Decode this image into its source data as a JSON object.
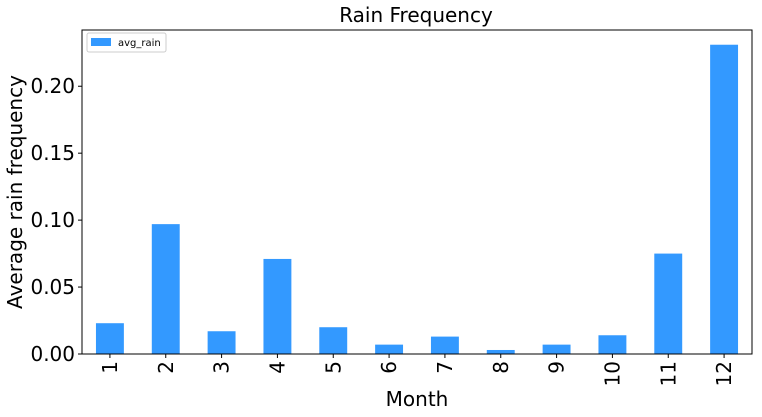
{
  "chart_data": {
    "type": "bar",
    "title": "Rain Frequency",
    "xlabel": "Month",
    "ylabel": "Average rain frequency",
    "categories": [
      "1",
      "2",
      "3",
      "4",
      "5",
      "6",
      "7",
      "8",
      "9",
      "10",
      "11",
      "12"
    ],
    "series": [
      {
        "name": "avg_rain",
        "color": "#3399ff",
        "values": [
          0.023,
          0.097,
          0.017,
          0.071,
          0.02,
          0.007,
          0.013,
          0.003,
          0.007,
          0.014,
          0.075,
          0.231
        ]
      }
    ],
    "ylim": [
      0,
      0.242
    ],
    "yticks": [
      0.0,
      0.05,
      0.1,
      0.15,
      0.2
    ],
    "ytick_labels": [
      "0.00",
      "0.05",
      "0.10",
      "0.15",
      "0.20"
    ],
    "grid": false,
    "legend_position": "top-left"
  }
}
